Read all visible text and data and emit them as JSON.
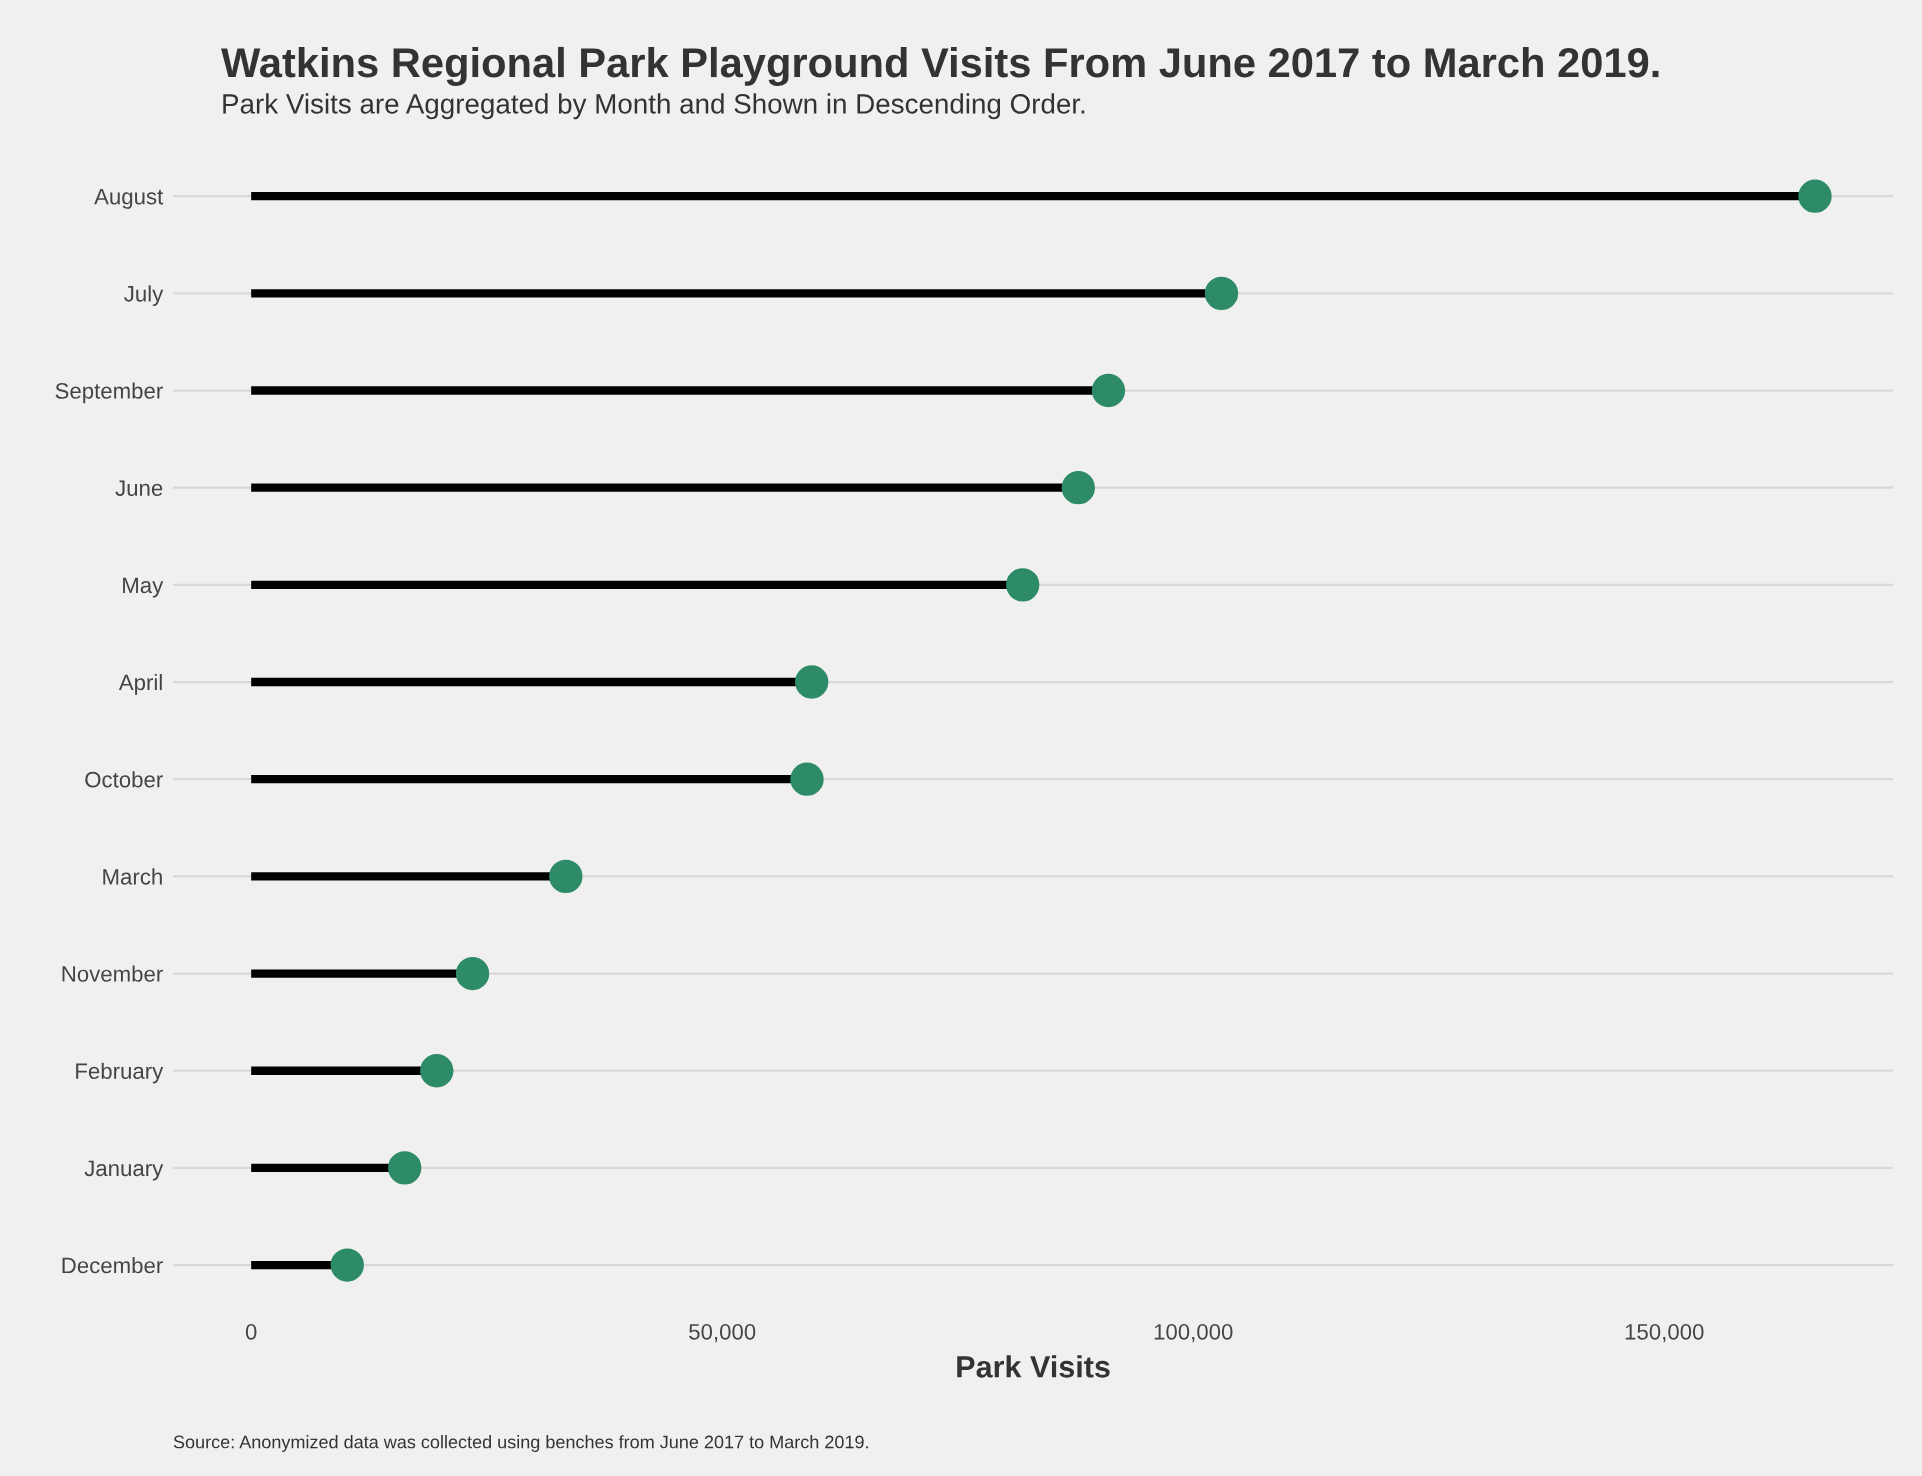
{
  "chart_data": {
    "type": "lollipop",
    "orientation": "horizontal",
    "title": "Watkins Regional Park Playground Visits From June 2017 to March 2019.",
    "subtitle": "Park Visits are Aggregated by Month and Shown in Descending Order.",
    "xlabel": "Park Visits",
    "categories": [
      "August",
      "July",
      "September",
      "June",
      "May",
      "April",
      "October",
      "March",
      "November",
      "February",
      "January",
      "December"
    ],
    "values": [
      166000,
      103000,
      91000,
      87800,
      81900,
      59500,
      59000,
      33400,
      23500,
      19700,
      16300,
      10200
    ],
    "color": "#2e8b67",
    "xlim": [
      -8300,
      174300
    ],
    "xticks": [
      {
        "value": 0,
        "label": "0"
      },
      {
        "value": 50000,
        "label": "50,000"
      },
      {
        "value": 100000,
        "label": "100,000"
      },
      {
        "value": 150000,
        "label": "150,000"
      }
    ],
    "grid": "y",
    "marker": "circle",
    "annotations": [
      "Source: Anonymized data was collected using benches from June 2017 to March 2019."
    ]
  }
}
